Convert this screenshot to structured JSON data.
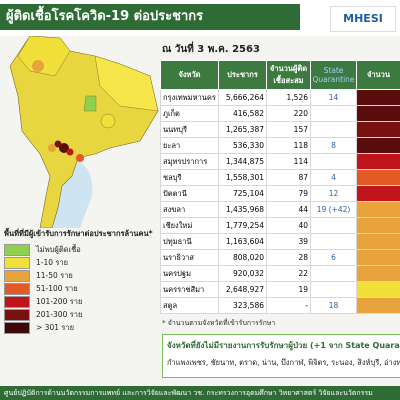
{
  "header": {
    "title": "ผู้ติดเชื้อโรคโควิด-19 ต่อประชากร",
    "logo": "MHESI",
    "date": "ณ วันที่ 3 พ.ค. 2563"
  },
  "table": {
    "columns": [
      "จังหวัด",
      "ประชากร",
      "จำนวนผู้ติดเชื้อสะสม",
      "State Quarantine",
      "จำนวน"
    ],
    "rows": [
      {
        "province": "กรุงเทพมหานคร",
        "population": "5,666,264",
        "cases": "1,526",
        "sq": "14",
        "color": "#5a0d0d"
      },
      {
        "province": "ภูเก็ต",
        "population": "416,582",
        "cases": "220",
        "color": "#5a0d0d"
      },
      {
        "province": "นนทบุรี",
        "population": "1,265,387",
        "cases": "157",
        "color": "#7a1212"
      },
      {
        "province": "ยะลา",
        "population": "536,330",
        "cases": "118",
        "sq": "8",
        "color": "#5a0d0d"
      },
      {
        "province": "สมุทรปราการ",
        "population": "1,344,875",
        "cases": "114",
        "color": "#c0161b"
      },
      {
        "province": "ชลบุรี",
        "population": "1,558,301",
        "cases": "87",
        "sq": "4",
        "color": "#e25b26"
      },
      {
        "province": "ปัตตานี",
        "population": "725,104",
        "cases": "79",
        "sq": "12",
        "color": "#c0161b"
      },
      {
        "province": "สงขลา",
        "population": "1,435,968",
        "cases": "44",
        "sq": "19 (+42)",
        "color": "#e8a33c"
      },
      {
        "province": "เชียงใหม่",
        "population": "1,779,254",
        "cases": "40",
        "color": "#e8a33c"
      },
      {
        "province": "ปทุมธานี",
        "population": "1,163,604",
        "cases": "39",
        "color": "#e8a33c"
      },
      {
        "province": "นราธิวาส",
        "population": "808,020",
        "cases": "28",
        "sq": "6",
        "color": "#e8a33c"
      },
      {
        "province": "นครปฐม",
        "population": "920,032",
        "cases": "22",
        "color": "#e8a33c"
      },
      {
        "province": "นครราชสีมา",
        "population": "2,648,927",
        "cases": "19",
        "color": "#f2e03a"
      },
      {
        "province": "สตูล",
        "population": "323,586",
        "cases": "-",
        "sq": "18",
        "color": "#e8a33c"
      }
    ],
    "note": "* จำนวนตามจังหวัดที่เข้ารับการรักษา"
  },
  "legend": {
    "title": "พื้นที่ที่มีผู้เข้ารับการรักษาต่อประชากรล้านคน*",
    "items": [
      {
        "label": "ไม่พบผู้ติดเชื้อ",
        "color": "#8fd14f"
      },
      {
        "label": "1-10 ราย",
        "color": "#f2e03a"
      },
      {
        "label": "11-50 ราย",
        "color": "#e8a33c"
      },
      {
        "label": "51-100 ราย",
        "color": "#e25b26"
      },
      {
        "label": "101-200 ราย",
        "color": "#c0161b"
      },
      {
        "label": "201-300 ราย",
        "color": "#7a1212"
      },
      {
        "label": "> 301 ราย",
        "color": "#3d0a0a"
      }
    ]
  },
  "notice": {
    "heading": "จังหวัดที่ยังไม่มีรายงานการรับรักษาผู้ป่วย (+1 จาก State Quarantine)",
    "body": "กำแพงเพชร, ชัยนาท, ตราด, น่าน, บึงกาฬ, พิจิตร, ระนอง, สิงห์บุรี, อ่างทอง"
  },
  "footer": "ศูนย์ปฏิบัติการด้านนวัตกรรมการแพทย์ และการวิจัยและพัฒนา วช.  กระทรวงการอุดมศึกษา วิทยาศาสตร์ วิจัยและนวัตกรรม"
}
